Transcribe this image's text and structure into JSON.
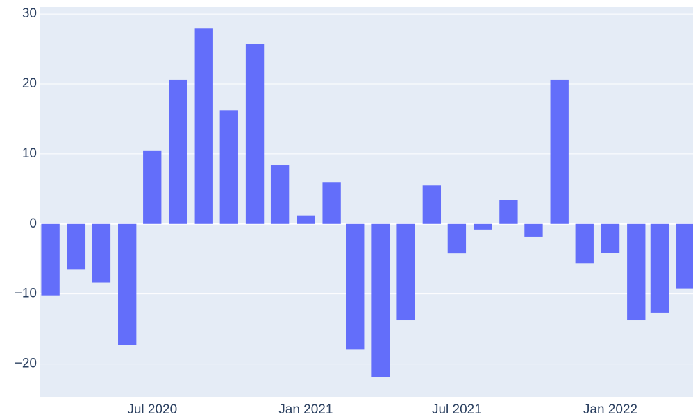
{
  "chart_data": {
    "type": "bar",
    "x": [
      "2020-03",
      "2020-04",
      "2020-05",
      "2020-06",
      "2020-07",
      "2020-08",
      "2020-09",
      "2020-10",
      "2020-11",
      "2020-12",
      "2021-01",
      "2021-02",
      "2021-03",
      "2021-04",
      "2021-05",
      "2021-06",
      "2021-07",
      "2021-08",
      "2021-09",
      "2021-10",
      "2021-11",
      "2021-12",
      "2022-01",
      "2022-02",
      "2022-03",
      "2022-04"
    ],
    "values": [
      -10.2,
      -6.5,
      -8.4,
      -17.3,
      10.5,
      20.6,
      27.9,
      16.2,
      25.7,
      8.4,
      1.2,
      5.9,
      -17.9,
      -21.9,
      -13.8,
      5.5,
      -4.2,
      -0.8,
      3.4,
      -1.8,
      20.6,
      -5.6,
      -4.1,
      -13.8,
      -12.7,
      -9.2
    ],
    "color": "#636efa",
    "xlim": [
      "2020-02-17",
      "2022-04-10"
    ],
    "xticks": [
      {
        "value": "2020-07",
        "label": "Jul 2020"
      },
      {
        "value": "2021-01",
        "label": "Jan 2021"
      },
      {
        "value": "2021-07",
        "label": "Jul 2021"
      },
      {
        "value": "2022-01",
        "label": "Jan 2022"
      }
    ],
    "ylim": [
      -24.8,
      31
    ],
    "yticks": [
      {
        "value": -20,
        "label": "−20"
      },
      {
        "value": -10,
        "label": "−10"
      },
      0,
      10,
      20,
      30
    ],
    "grid": true
  }
}
